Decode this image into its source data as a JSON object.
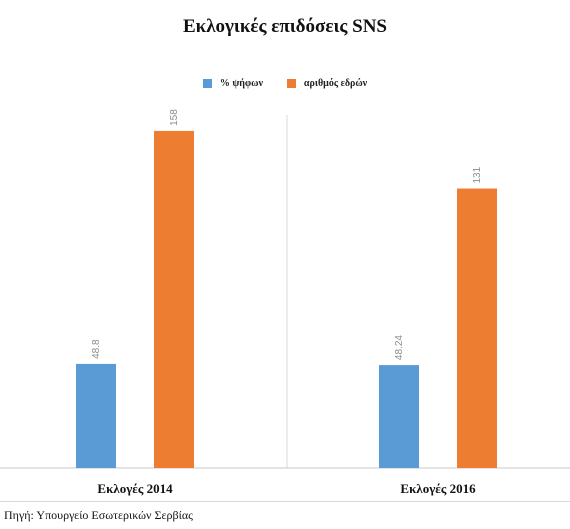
{
  "title": "Εκλογικές επιδόσεις SNS",
  "source": "Πηγή: Υπουργείο Εσωτερικών Σερβίας",
  "colors": {
    "votes": "#5b9bd5",
    "seats": "#ed7d31",
    "axis": "#c8c8c8",
    "data_label": "#8c8c8c"
  },
  "chart_data": {
    "type": "bar",
    "title": "Εκλογικές επιδόσεις SNS",
    "categories": [
      "Εκλογές 2014",
      "Εκλογές 2016"
    ],
    "series": [
      {
        "name": "% ψήφων",
        "values": [
          48.8,
          48.24
        ],
        "labels": [
          "48.8",
          "48.24"
        ],
        "color": "#5b9bd5"
      },
      {
        "name": "αριθμός εδρών",
        "values": [
          158,
          131
        ],
        "labels": [
          "158",
          "131"
        ],
        "color": "#ed7d31"
      }
    ],
    "ylim": [
      0,
      180
    ],
    "grid": false,
    "legend_position": "top",
    "xlabel": "",
    "ylabel": ""
  }
}
